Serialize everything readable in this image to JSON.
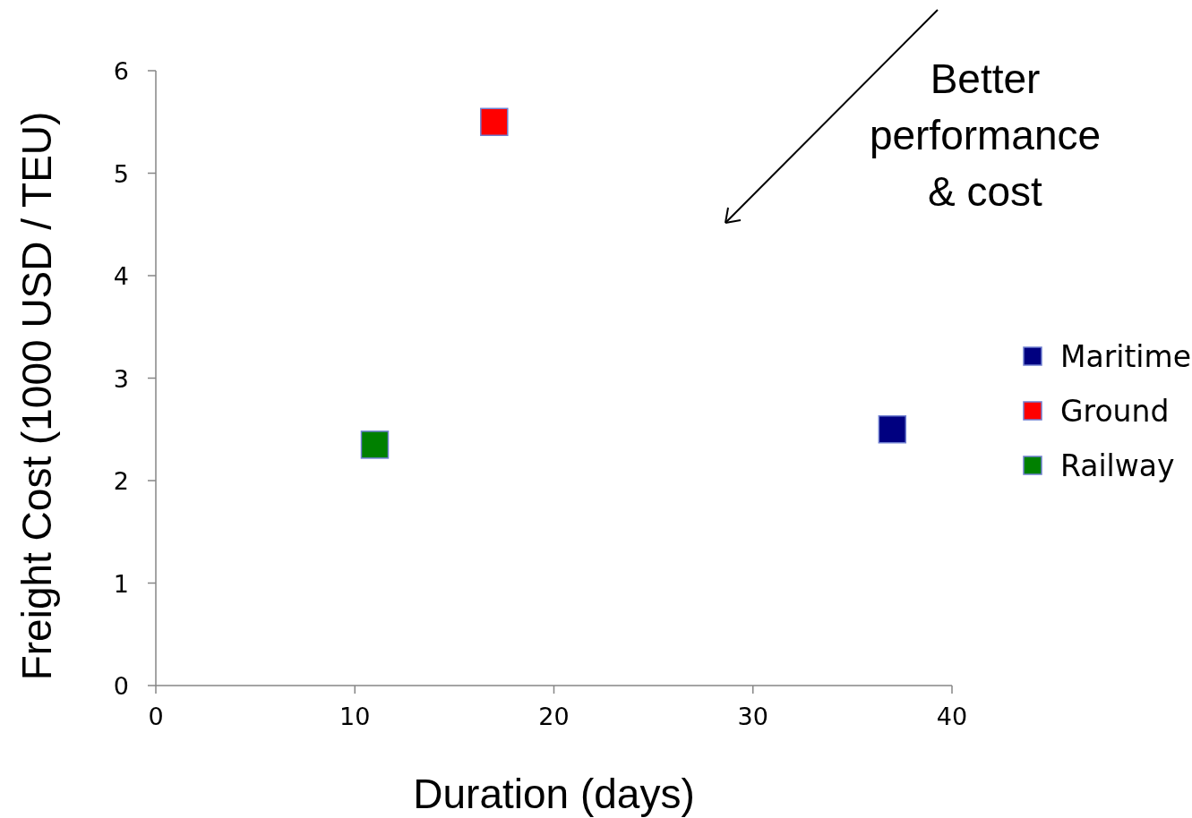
{
  "chart_data": {
    "type": "scatter",
    "xlabel": "Duration (days)",
    "ylabel": "Freight Cost (1000 USD / TEU)",
    "xlim": [
      0,
      40
    ],
    "xticks": [
      0,
      10,
      20,
      30,
      40
    ],
    "ylim": [
      0,
      6
    ],
    "yticks": [
      0,
      1,
      2,
      3,
      4,
      5,
      6
    ],
    "marker": "square",
    "legend": "right",
    "grid": false,
    "series": [
      {
        "name": "Maritime",
        "color": "#000080",
        "x": [
          37
        ],
        "values": [
          2.5
        ]
      },
      {
        "name": "Ground",
        "color": "#ff0000",
        "x": [
          17
        ],
        "values": [
          5.5
        ]
      },
      {
        "name": "Railway",
        "color": "#008000",
        "x": [
          11
        ],
        "values": [
          2.35
        ]
      }
    ],
    "annotations": [
      "Better\nperformance\n& cost"
    ]
  }
}
